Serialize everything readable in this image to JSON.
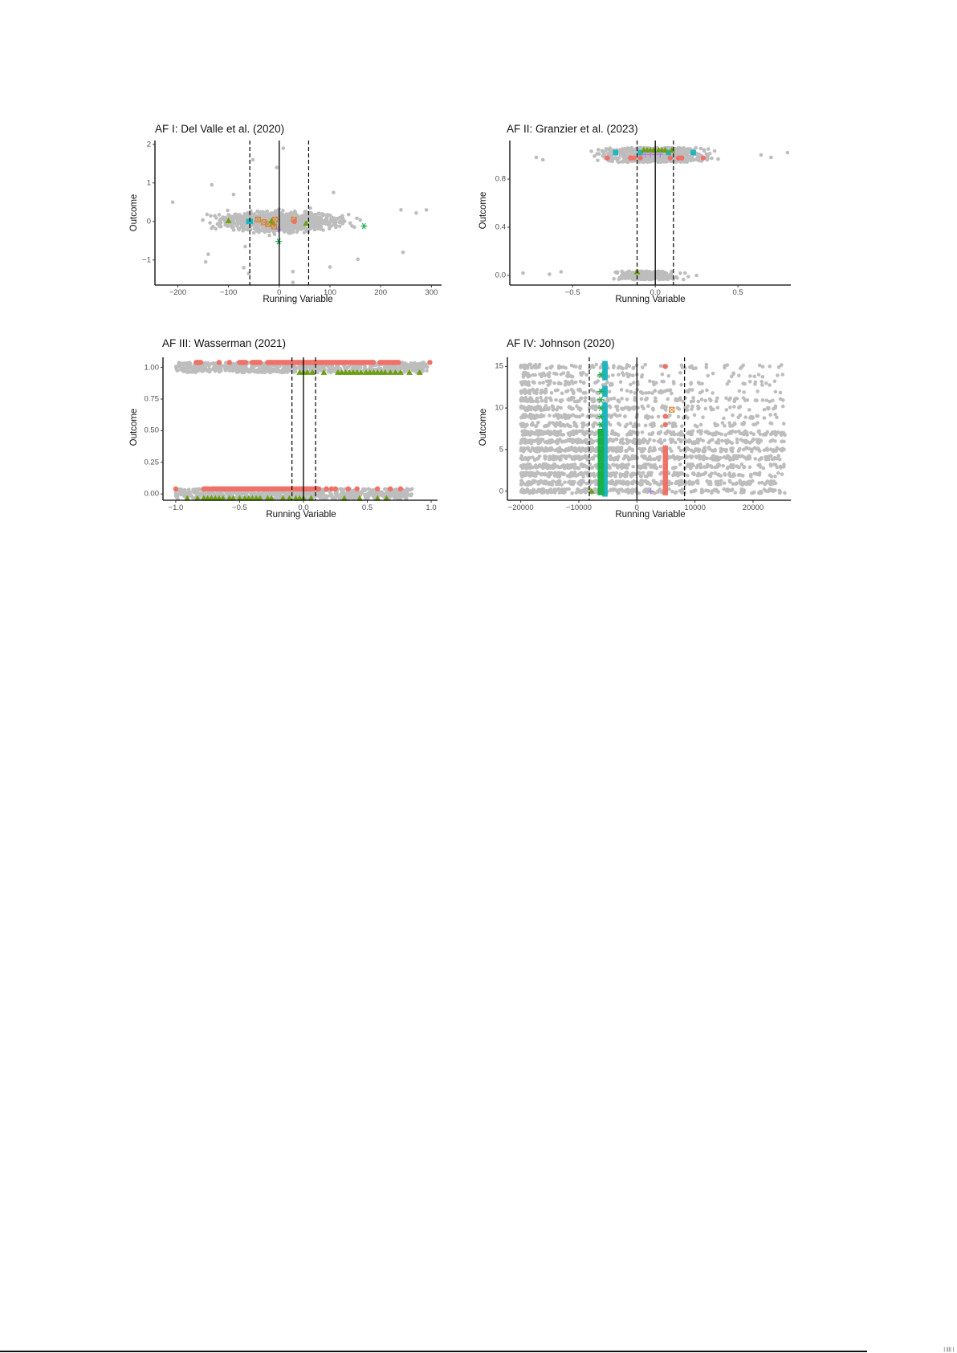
{
  "colors": {
    "background_points": "#bdbdbd",
    "red": "#f07167",
    "green_triangle": "#6aa00f",
    "teal_square": "#1fb5bf",
    "green_star": "#18b04a",
    "orange_box": "#d9822b",
    "purple_plus": "#b27be6",
    "axis": "#000000",
    "tick_text": "#4d4d4d"
  },
  "chart_data": [
    {
      "id": "af1",
      "type": "scatter",
      "title": "AF I: Del Valle et al. (2020)",
      "xlabel": "Running Variable",
      "ylabel": "Outcome",
      "xlim": [
        -245,
        320
      ],
      "ylim": [
        -1.65,
        2.1
      ],
      "xticks": [
        -200,
        -100,
        0,
        100,
        200,
        300
      ],
      "xtick_labels": [
        "−200",
        "−100",
        "0",
        "100",
        "200",
        "300"
      ],
      "yticks": [
        -1,
        0,
        1,
        2
      ],
      "ytick_labels": [
        "−1",
        "0",
        "1",
        "2"
      ],
      "cutoff": 0,
      "bandwidth_lines": [
        -58,
        58
      ],
      "cloud": {
        "x_center": 0,
        "x_spread": 210,
        "y_center": 0,
        "y_spread": 0.35,
        "n": 900
      },
      "highlight_points": [
        {
          "x": -100,
          "y": 0.02,
          "marker": "triangle",
          "color": "green_triangle"
        },
        {
          "x": -60,
          "y": 0.0,
          "marker": "square",
          "color": "teal_square"
        },
        {
          "x": -57,
          "y": 0.0,
          "marker": "square",
          "color": "teal_square"
        },
        {
          "x": -42,
          "y": 0.05,
          "marker": "box",
          "color": "orange_box"
        },
        {
          "x": -30,
          "y": -0.02,
          "marker": "box",
          "color": "orange_box"
        },
        {
          "x": -22,
          "y": -0.07,
          "marker": "box",
          "color": "orange_box"
        },
        {
          "x": -15,
          "y": 0.02,
          "marker": "triangle",
          "color": "green_triangle"
        },
        {
          "x": -12,
          "y": -0.04,
          "marker": "triangle",
          "color": "green_triangle"
        },
        {
          "x": -8,
          "y": 0.05,
          "marker": "box",
          "color": "orange_box"
        },
        {
          "x": -10,
          "y": -0.13,
          "marker": "box",
          "color": "orange_box"
        },
        {
          "x": -2,
          "y": -0.2,
          "marker": "plus",
          "color": "purple_plus"
        },
        {
          "x": -1,
          "y": -0.52,
          "marker": "star",
          "color": "green_star"
        },
        {
          "x": 29,
          "y": 0.05,
          "marker": "box",
          "color": "orange_box"
        },
        {
          "x": 30,
          "y": 0.0,
          "marker": "circle",
          "color": "red"
        },
        {
          "x": 53,
          "y": -0.05,
          "marker": "triangle",
          "color": "green_triangle"
        },
        {
          "x": 167,
          "y": -0.12,
          "marker": "star",
          "color": "green_star"
        }
      ],
      "outliers": [
        [
          8,
          1.9
        ],
        [
          -52,
          1.6
        ],
        [
          -5,
          1.4
        ],
        [
          -133,
          0.95
        ],
        [
          -210,
          0.5
        ],
        [
          107,
          0.75
        ],
        [
          -140,
          -0.85
        ],
        [
          -145,
          -1.05
        ],
        [
          -70,
          -1.2
        ],
        [
          -60,
          -1.35
        ],
        [
          27,
          -1.3
        ],
        [
          27,
          -1.58
        ],
        [
          100,
          -1.18
        ],
        [
          244,
          -0.8
        ],
        [
          155,
          -0.98
        ],
        [
          -67,
          -0.65
        ],
        [
          -90,
          0.7
        ],
        [
          240,
          0.3
        ],
        [
          290,
          0.3
        ],
        [
          270,
          0.22
        ]
      ]
    },
    {
      "id": "af2",
      "type": "scatter",
      "title": "AF II: Granzier et al. (2023)",
      "xlabel": "Running Variable",
      "ylabel": "Outcome",
      "xlim": [
        -0.88,
        0.82
      ],
      "ylim": [
        -0.08,
        1.12
      ],
      "xticks": [
        -0.5,
        0.0,
        0.5
      ],
      "xtick_labels": [
        "−0.5",
        "0.0",
        "0.5"
      ],
      "yticks": [
        0.0,
        0.4,
        0.8
      ],
      "ytick_labels": [
        "0.0",
        "0.4",
        "0.8"
      ],
      "cutoff": 0,
      "bandwidth_lines": [
        -0.11,
        0.11
      ],
      "bands": [
        {
          "y": 1.0,
          "x_center": 0.0,
          "x_spread": 0.55,
          "thickness": 0.06,
          "n": 700
        },
        {
          "y": 0.0,
          "x_center": -0.05,
          "x_spread": 0.3,
          "thickness": 0.035,
          "n": 300
        }
      ],
      "highlight_points": [
        {
          "x": -0.24,
          "y": 1.02,
          "marker": "square",
          "color": "teal_square"
        },
        {
          "x": -0.09,
          "y": 1.02,
          "marker": "square",
          "color": "teal_square"
        },
        {
          "x": 0.08,
          "y": 1.02,
          "marker": "square",
          "color": "teal_square"
        },
        {
          "x": 0.23,
          "y": 1.02,
          "marker": "square",
          "color": "teal_square"
        },
        {
          "x": -0.29,
          "y": 0.975,
          "marker": "circle",
          "color": "red"
        },
        {
          "x": -0.15,
          "y": 0.975,
          "marker": "circle",
          "color": "red"
        },
        {
          "x": -0.13,
          "y": 0.975,
          "marker": "circle",
          "color": "red"
        },
        {
          "x": -0.09,
          "y": 0.975,
          "marker": "circle",
          "color": "red"
        },
        {
          "x": 0.09,
          "y": 0.975,
          "marker": "circle",
          "color": "red"
        },
        {
          "x": 0.14,
          "y": 0.975,
          "marker": "circle",
          "color": "red"
        },
        {
          "x": 0.16,
          "y": 0.975,
          "marker": "circle",
          "color": "red"
        },
        {
          "x": 0.29,
          "y": 0.975,
          "marker": "circle",
          "color": "red"
        },
        {
          "x": -0.07,
          "y": 1.04,
          "marker": "triangle",
          "color": "green_triangle"
        },
        {
          "x": -0.05,
          "y": 1.04,
          "marker": "triangle",
          "color": "green_triangle"
        },
        {
          "x": -0.03,
          "y": 1.04,
          "marker": "triangle",
          "color": "green_triangle"
        },
        {
          "x": -0.01,
          "y": 1.04,
          "marker": "triangle",
          "color": "green_triangle"
        },
        {
          "x": 0.02,
          "y": 1.04,
          "marker": "triangle",
          "color": "green_triangle"
        },
        {
          "x": 0.04,
          "y": 1.04,
          "marker": "triangle",
          "color": "green_triangle"
        },
        {
          "x": 0.06,
          "y": 1.04,
          "marker": "triangle",
          "color": "green_triangle"
        },
        {
          "x": 0.1,
          "y": 1.04,
          "marker": "triangle",
          "color": "green_triangle"
        },
        {
          "x": -0.06,
          "y": 1.005,
          "marker": "plus",
          "color": "purple_plus"
        },
        {
          "x": -0.03,
          "y": 1.005,
          "marker": "plus",
          "color": "purple_plus"
        },
        {
          "x": 0.0,
          "y": 1.005,
          "marker": "plus",
          "color": "purple_plus"
        },
        {
          "x": 0.03,
          "y": 1.005,
          "marker": "plus",
          "color": "purple_plus"
        },
        {
          "x": -0.11,
          "y": 0.03,
          "marker": "triangle",
          "color": "green_triangle"
        }
      ],
      "outliers": [
        [
          -0.8,
          0.02
        ],
        [
          -0.64,
          0.01
        ],
        [
          -0.57,
          0.03
        ],
        [
          -0.72,
          0.98
        ],
        [
          -0.68,
          0.96
        ],
        [
          0.7,
          0.98
        ],
        [
          0.8,
          1.02
        ],
        [
          0.64,
          1.0
        ],
        [
          0.25,
          0.0
        ],
        [
          0.2,
          -0.01
        ],
        [
          0.18,
          0.02
        ]
      ]
    },
    {
      "id": "af3",
      "type": "scatter",
      "title": "AF III: Wasserman (2021)",
      "xlabel": "Running Variable",
      "ylabel": "Outcome",
      "xlim": [
        -1.1,
        1.05
      ],
      "ylim": [
        -0.05,
        1.08
      ],
      "xticks": [
        -1.0,
        -0.5,
        0.0,
        0.5,
        1.0
      ],
      "xtick_labels": [
        "−1.0",
        "−0.5",
        "0.0",
        "0.5",
        "1.0"
      ],
      "yticks": [
        0.0,
        0.25,
        0.5,
        0.75,
        1.0
      ],
      "ytick_labels": [
        "0.00",
        "0.25",
        "0.50",
        "0.75",
        "1.00"
      ],
      "cutoff": 0,
      "bandwidth_lines": [
        -0.09,
        0.095
      ],
      "bands": [
        {
          "y": 1.0,
          "x_min": -1.0,
          "x_max": 0.98,
          "thickness": 0.04,
          "n": 700
        },
        {
          "y": 0.0,
          "x_min": -1.0,
          "x_max": 0.85,
          "thickness": 0.04,
          "n": 700
        }
      ],
      "red_runs": [
        {
          "y": 1.04,
          "ranges": [
            [
              -0.84,
              -0.8
            ],
            [
              -0.66,
              -0.66
            ],
            [
              -0.58,
              -0.58
            ],
            [
              -0.5,
              -0.45
            ],
            [
              -0.4,
              -0.33
            ],
            [
              -0.28,
              0.55
            ],
            [
              0.6,
              0.75
            ]
          ],
          "extra": [
            0.99
          ]
        },
        {
          "y": 0.04,
          "ranges": [
            [
              -0.78,
              -0.74
            ],
            [
              -0.72,
              0.12
            ]
          ],
          "extra": [
            -1.0,
            0.18,
            0.22,
            0.25,
            0.35,
            0.42,
            0.58,
            0.68,
            0.76
          ]
        }
      ],
      "green_triangles_top": [
        -0.03,
        0.0,
        0.03,
        0.07,
        0.16,
        0.27,
        0.3,
        0.33,
        0.36,
        0.39,
        0.42,
        0.45,
        0.49,
        0.52,
        0.55,
        0.58,
        0.61,
        0.64,
        0.68,
        0.72,
        0.76,
        0.83,
        0.91
      ],
      "green_triangles_bottom": [
        -0.91,
        -0.83,
        -0.78,
        -0.75,
        -0.72,
        -0.69,
        -0.66,
        -0.63,
        -0.58,
        -0.55,
        -0.5,
        -0.46,
        -0.43,
        -0.4,
        -0.37,
        -0.34,
        -0.28,
        -0.25,
        -0.16,
        -0.11,
        -0.06,
        -0.03,
        0.0,
        0.06,
        0.32,
        0.44,
        0.58,
        0.65
      ]
    },
    {
      "id": "af4",
      "type": "scatter",
      "title": "AF IV: Johnson (2020)",
      "xlabel": "Running Variable",
      "ylabel": "Outcome",
      "xlim": [
        -22300,
        26500
      ],
      "ylim": [
        -1.1,
        16.1
      ],
      "xticks": [
        -20000,
        -10000,
        0,
        10000,
        20000
      ],
      "xtick_labels": [
        "−20000",
        "−10000",
        "0",
        "10000",
        "20000"
      ],
      "yticks": [
        0,
        5,
        10,
        15
      ],
      "ytick_labels": [
        "0",
        "5",
        "10",
        "15"
      ],
      "cutoff": 0,
      "bandwidth_lines": [
        -8200,
        8200
      ],
      "rows": [
        0,
        1,
        2,
        3,
        4,
        5,
        6,
        7,
        8,
        9,
        10,
        11,
        12,
        13,
        14,
        15
      ],
      "x_range": [
        -20000,
        25500
      ],
      "teal_column": {
        "x": -5500,
        "y_values": [
          0,
          1,
          2,
          3,
          4,
          5,
          6,
          7,
          8,
          9,
          10,
          12,
          14,
          15
        ]
      },
      "green_star_column": {
        "x": -6200,
        "y_values": [
          0,
          1,
          2,
          3,
          4,
          5,
          6,
          7,
          8,
          9,
          10,
          11,
          12,
          14
        ]
      },
      "red_column": {
        "x": 4900,
        "y_values": [
          0,
          1,
          2,
          3,
          4,
          5,
          8,
          9,
          15
        ]
      },
      "extra_points": [
        {
          "x": -7800,
          "y": 0,
          "marker": "triangle",
          "color": "green_triangle"
        },
        {
          "x": 2400,
          "y": 0,
          "marker": "plus",
          "color": "purple_plus"
        },
        {
          "x": 6000,
          "y": 9.8,
          "marker": "box",
          "color": "orange_box"
        }
      ]
    }
  ],
  "footer": {
    "page_marker": "| |||| |"
  }
}
